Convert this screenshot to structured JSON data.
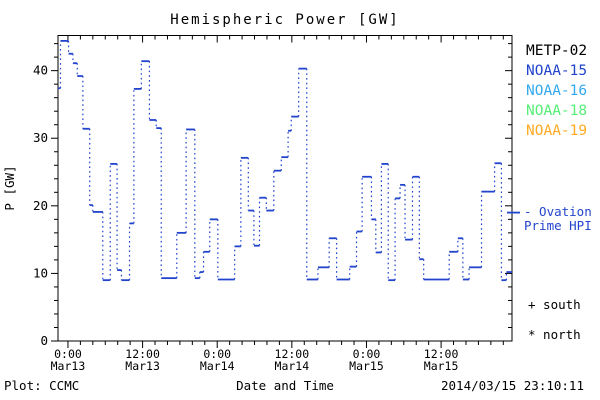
{
  "chart_data": {
    "type": "line",
    "subtype": "stairstep-dotted-risers",
    "title": "Hemispheric Power [GW]",
    "xlabel": "Date and Time",
    "ylabel": "P [GW]",
    "xlim_hours_from_mar13_0000": [
      -1.6,
      71.4
    ],
    "ylim": [
      0,
      45.2
    ],
    "grid": false,
    "legend_position": "right-outside",
    "line_color": "#2244cc",
    "x_major_ticks": [
      {
        "hour": 0,
        "time": "0:00",
        "date": "Mar13"
      },
      {
        "hour": 12,
        "time": "12:00",
        "date": "Mar13"
      },
      {
        "hour": 24,
        "time": "0:00",
        "date": "Mar14"
      },
      {
        "hour": 36,
        "time": "12:00",
        "date": "Mar14"
      },
      {
        "hour": 48,
        "time": "0:00",
        "date": "Mar15"
      },
      {
        "hour": 60,
        "time": "12:00",
        "date": "Mar15"
      }
    ],
    "x_minor_step_hours": 2,
    "y_major_ticks": [
      0,
      10,
      20,
      30,
      40
    ],
    "y_minor_step": 2,
    "ovation_marker_gw": 19.0,
    "steps_hour_gw": [
      [
        -1.6,
        37.4
      ],
      [
        -1.2,
        44.4
      ],
      [
        0.1,
        42.5
      ],
      [
        0.8,
        41.1
      ],
      [
        1.5,
        39.2
      ],
      [
        2.4,
        31.4
      ],
      [
        3.5,
        20.1
      ],
      [
        4.0,
        19.1
      ],
      [
        5.6,
        9.0
      ],
      [
        6.8,
        26.2
      ],
      [
        7.9,
        10.5
      ],
      [
        8.6,
        9.0
      ],
      [
        9.9,
        17.4
      ],
      [
        10.6,
        37.3
      ],
      [
        11.8,
        41.4
      ],
      [
        13.1,
        32.7
      ],
      [
        14.2,
        31.5
      ],
      [
        15.0,
        9.3
      ],
      [
        17.5,
        16.0
      ],
      [
        19.0,
        31.3
      ],
      [
        20.4,
        9.3
      ],
      [
        21.2,
        10.2
      ],
      [
        21.8,
        13.2
      ],
      [
        22.8,
        18.0
      ],
      [
        24.1,
        9.1
      ],
      [
        26.8,
        14.0
      ],
      [
        27.8,
        27.1
      ],
      [
        29.0,
        19.3
      ],
      [
        29.9,
        14.1
      ],
      [
        30.8,
        21.2
      ],
      [
        31.9,
        19.3
      ],
      [
        33.1,
        25.2
      ],
      [
        34.3,
        27.2
      ],
      [
        35.4,
        31.1
      ],
      [
        35.9,
        33.2
      ],
      [
        37.1,
        40.3
      ],
      [
        38.4,
        9.1
      ],
      [
        40.2,
        10.9
      ],
      [
        42.0,
        15.2
      ],
      [
        43.2,
        9.1
      ],
      [
        45.3,
        11.0
      ],
      [
        46.4,
        16.2
      ],
      [
        47.3,
        24.3
      ],
      [
        48.8,
        18.0
      ],
      [
        49.5,
        13.1
      ],
      [
        50.4,
        26.2
      ],
      [
        51.5,
        9.0
      ],
      [
        52.6,
        21.1
      ],
      [
        53.4,
        23.1
      ],
      [
        54.2,
        15.0
      ],
      [
        55.4,
        24.3
      ],
      [
        56.5,
        12.1
      ],
      [
        57.2,
        9.1
      ],
      [
        61.3,
        13.2
      ],
      [
        62.7,
        15.2
      ],
      [
        63.5,
        9.1
      ],
      [
        64.5,
        10.9
      ],
      [
        66.5,
        22.1
      ],
      [
        68.6,
        26.3
      ],
      [
        69.7,
        9.0
      ],
      [
        70.5,
        10.2
      ]
    ]
  },
  "legend": {
    "items": [
      {
        "label": "METP-02",
        "color": "#000000"
      },
      {
        "label": "NOAA-15",
        "color": "#2244cc"
      },
      {
        "label": "NOAA-16",
        "color": "#33aaee"
      },
      {
        "label": "NOAA-18",
        "color": "#55ee77"
      },
      {
        "label": "NOAA-19",
        "color": "#ffaa22"
      }
    ]
  },
  "annotations": {
    "ovation_line1": "- Ovation",
    "ovation_line2": "Prime HPI",
    "ovation_color": "#2244cc",
    "south_label": "+ south",
    "north_label": "* north",
    "plot_credit": "Plot: CCMC",
    "timestamp": "2014/03/15 23:10:11"
  }
}
